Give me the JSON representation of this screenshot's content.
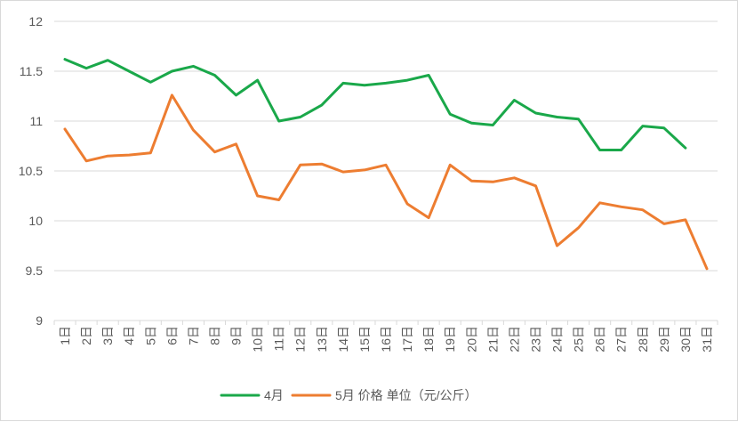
{
  "chart_data": {
    "type": "line",
    "title": "",
    "xlabel": "",
    "ylabel": "",
    "ylim": [
      9,
      12
    ],
    "yticks": [
      "9",
      "9.5",
      "10",
      "10.5",
      "11",
      "11.5",
      "12"
    ],
    "grid": true,
    "legend_position": "bottom",
    "legend_suffix": "价格 单位（元/公斤）",
    "categories": [
      "1日",
      "2日",
      "3日",
      "4日",
      "5日",
      "6日",
      "7日",
      "8日",
      "9日",
      "10日",
      "11日",
      "12日",
      "13日",
      "14日",
      "15日",
      "16日",
      "17日",
      "18日",
      "19日",
      "20日",
      "21日",
      "22日",
      "23日",
      "24日",
      "25日",
      "26日",
      "27日",
      "28日",
      "29日",
      "30日",
      "31日"
    ],
    "series": [
      {
        "name": "4月",
        "color": "#1aa84a",
        "values": [
          11.62,
          11.53,
          11.61,
          11.5,
          11.39,
          11.5,
          11.55,
          11.46,
          11.26,
          11.41,
          11.0,
          11.04,
          11.16,
          11.38,
          11.36,
          11.38,
          11.41,
          11.46,
          11.07,
          10.98,
          10.96,
          11.21,
          11.08,
          11.04,
          11.02,
          10.71,
          10.71,
          10.95,
          10.93,
          10.73,
          null
        ]
      },
      {
        "name": "5月",
        "color": "#ed7d31",
        "values": [
          10.92,
          10.6,
          10.65,
          10.66,
          10.68,
          11.26,
          10.91,
          10.69,
          10.77,
          10.25,
          10.21,
          10.56,
          10.57,
          10.49,
          10.51,
          10.56,
          10.17,
          10.03,
          10.56,
          10.4,
          10.39,
          10.43,
          10.35,
          9.75,
          9.93,
          10.18,
          10.14,
          10.11,
          9.97,
          10.01,
          9.52
        ]
      }
    ]
  }
}
